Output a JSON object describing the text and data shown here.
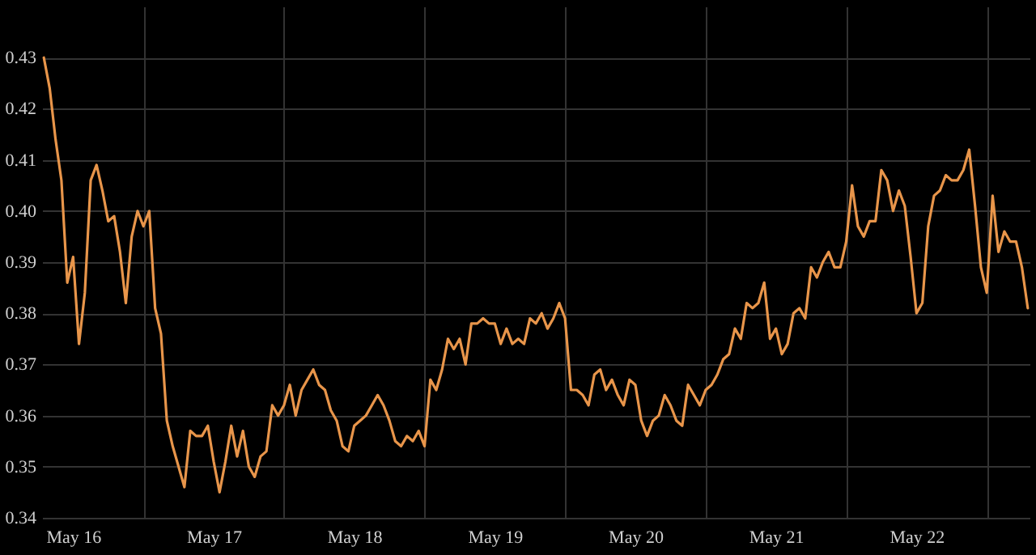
{
  "chart_data": {
    "type": "line",
    "grid": true,
    "line_style": "solid",
    "marker": "none",
    "ylim": [
      0.34,
      0.44
    ],
    "categories": [
      null,
      null,
      null,
      null,
      null,
      "May 16",
      null,
      null,
      null,
      null,
      null,
      null,
      null,
      null,
      null,
      null,
      null,
      null,
      null,
      null,
      null,
      null,
      null,
      null,
      null,
      null,
      null,
      null,
      null,
      "May 17",
      null,
      null,
      null,
      null,
      null,
      null,
      null,
      null,
      null,
      null,
      null,
      null,
      null,
      null,
      null,
      null,
      null,
      null,
      null,
      null,
      null,
      null,
      null,
      "May 18",
      null,
      null,
      null,
      null,
      null,
      null,
      null,
      null,
      null,
      null,
      null,
      null,
      null,
      null,
      null,
      null,
      null,
      null,
      null,
      null,
      null,
      null,
      null,
      "May 19",
      null,
      null,
      null,
      null,
      null,
      null,
      null,
      null,
      null,
      null,
      null,
      null,
      null,
      null,
      null,
      null,
      null,
      null,
      null,
      null,
      null,
      null,
      null,
      "May 20",
      null,
      null,
      null,
      null,
      null,
      null,
      null,
      null,
      null,
      null,
      null,
      null,
      null,
      null,
      null,
      null,
      null,
      null,
      null,
      null,
      null,
      null,
      null,
      "May 21",
      null,
      null,
      null,
      null,
      null,
      null,
      null,
      null,
      null,
      null,
      null,
      null,
      null,
      null,
      null,
      null,
      null,
      null,
      null,
      null,
      null,
      null,
      null,
      "May 22",
      null,
      null,
      null,
      null,
      null,
      null,
      null,
      null,
      null,
      null,
      null,
      null,
      null,
      null,
      null,
      null,
      null,
      null,
      null
    ],
    "yticks": [
      0.34,
      0.35,
      0.36,
      0.37,
      0.38,
      0.39,
      {
        "value": 0.4,
        "label": "0.40"
      },
      0.41,
      0.42,
      0.43
    ],
    "series": [
      {
        "color": "#e8954a",
        "values": [
          0.43,
          0.424,
          0.414,
          0.406,
          0.386,
          0.391,
          0.374,
          0.384,
          0.406,
          0.409,
          0.404,
          0.398,
          0.399,
          0.392,
          0.382,
          0.395,
          0.4,
          0.397,
          0.4,
          0.381,
          0.376,
          0.359,
          0.354,
          0.35,
          0.346,
          0.357,
          0.356,
          0.356,
          0.358,
          0.351,
          0.345,
          0.351,
          0.358,
          0.352,
          0.357,
          0.35,
          0.348,
          0.352,
          0.353,
          0.362,
          0.36,
          0.362,
          0.366,
          0.36,
          0.365,
          0.367,
          0.369,
          0.366,
          0.365,
          0.361,
          0.359,
          0.354,
          0.353,
          0.358,
          0.359,
          0.36,
          0.362,
          0.364,
          0.362,
          0.359,
          0.355,
          0.354,
          0.356,
          0.355,
          0.357,
          0.354,
          0.367,
          0.365,
          0.369,
          0.375,
          0.373,
          0.375,
          0.37,
          0.378,
          0.378,
          0.379,
          0.378,
          0.378,
          0.374,
          0.377,
          0.374,
          0.375,
          0.374,
          0.379,
          0.378,
          0.38,
          0.377,
          0.379,
          0.382,
          0.379,
          0.365,
          0.365,
          0.364,
          0.362,
          0.368,
          0.369,
          0.365,
          0.367,
          0.364,
          0.362,
          0.367,
          0.366,
          0.359,
          0.356,
          0.359,
          0.36,
          0.364,
          0.362,
          0.359,
          0.358,
          0.366,
          0.364,
          0.362,
          0.365,
          0.366,
          0.368,
          0.371,
          0.372,
          0.377,
          0.375,
          0.382,
          0.381,
          0.382,
          0.386,
          0.375,
          0.377,
          0.372,
          0.374,
          0.38,
          0.381,
          0.379,
          0.389,
          0.387,
          0.39,
          0.392,
          0.389,
          0.389,
          0.394,
          0.405,
          0.397,
          0.395,
          0.398,
          0.398,
          0.408,
          0.406,
          0.4,
          0.404,
          0.401,
          0.391,
          0.38,
          0.382,
          0.397,
          0.403,
          0.404,
          0.407,
          0.406,
          0.406,
          0.408,
          0.412,
          0.401,
          0.389,
          0.384,
          0.403,
          0.392,
          0.396,
          0.394,
          0.394,
          0.389,
          0.381
        ]
      }
    ]
  }
}
